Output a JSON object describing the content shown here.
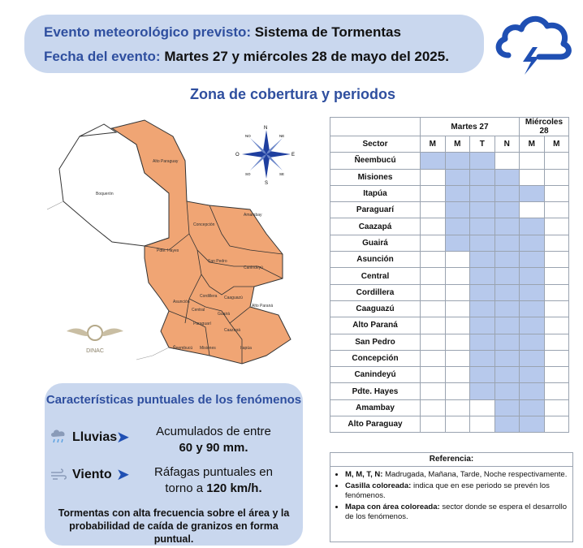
{
  "header": {
    "event_label": "Evento meteorológico previsto:",
    "event_value": "Sistema de Tormentas",
    "date_label": "Fecha del evento:",
    "date_value": "Martes 27 y miércoles 28 de mayo del 2025."
  },
  "icons": {
    "weather": "storm-cloud-icon",
    "rain": "rain-cloud-icon",
    "wind": "wind-icon"
  },
  "colors": {
    "accent": "#2f4f9f",
    "header_bg": "#c9d7ee",
    "cell_on": "#b7c9ec",
    "map_fill": "#f0a574",
    "icon_blue": "#1f4fb3"
  },
  "section_title": "Zona de cobertura y periodos",
  "map": {
    "labels": [
      "Alto Paraguay",
      "Boquerón",
      "Pdte. Hayes",
      "Concepción",
      "Amambay",
      "San Pedro",
      "Canindeyú",
      "Asunción",
      "Cordillera",
      "Caaguazú",
      "Alto Paraná",
      "Guairá",
      "Caazapá",
      "Paraguarí",
      "Ñeembucú",
      "Misiones",
      "Itapúa",
      "Central"
    ],
    "compass": {
      "n": "N",
      "ne": "NE",
      "e": "E",
      "se": "SE",
      "s": "S",
      "so": "SO",
      "o": "O",
      "no": "NO"
    },
    "logo_text": "DINAC"
  },
  "table": {
    "days": [
      "Martes 27",
      "Miércoles 28"
    ],
    "sector_header": "Sector",
    "periods": [
      "M",
      "M",
      "T",
      "N",
      "M",
      "M"
    ],
    "rows": [
      {
        "name": "Ñeembucú",
        "cells": [
          1,
          1,
          1,
          0,
          0,
          0
        ]
      },
      {
        "name": "Misiones",
        "cells": [
          0,
          1,
          1,
          1,
          0,
          0
        ]
      },
      {
        "name": "Itapúa",
        "cells": [
          0,
          1,
          1,
          1,
          1,
          0
        ]
      },
      {
        "name": "Paraguarí",
        "cells": [
          0,
          1,
          1,
          1,
          0,
          0
        ]
      },
      {
        "name": "Caazapá",
        "cells": [
          0,
          1,
          1,
          1,
          1,
          0
        ]
      },
      {
        "name": "Guairá",
        "cells": [
          0,
          1,
          1,
          1,
          1,
          0
        ]
      },
      {
        "name": "Asunción",
        "cells": [
          0,
          0,
          1,
          1,
          1,
          0
        ]
      },
      {
        "name": "Central",
        "cells": [
          0,
          0,
          1,
          1,
          1,
          0
        ]
      },
      {
        "name": "Cordillera",
        "cells": [
          0,
          0,
          1,
          1,
          1,
          0
        ]
      },
      {
        "name": "Caaguazú",
        "cells": [
          0,
          0,
          1,
          1,
          1,
          0
        ]
      },
      {
        "name": "Alto Paraná",
        "cells": [
          0,
          0,
          1,
          1,
          1,
          0
        ]
      },
      {
        "name": "San Pedro",
        "cells": [
          0,
          0,
          1,
          1,
          1,
          0
        ]
      },
      {
        "name": "Concepción",
        "cells": [
          0,
          0,
          1,
          1,
          1,
          0
        ]
      },
      {
        "name": "Canindeyú",
        "cells": [
          0,
          0,
          1,
          1,
          1,
          0
        ]
      },
      {
        "name": "Pdte. Hayes",
        "cells": [
          0,
          0,
          1,
          1,
          1,
          0
        ]
      },
      {
        "name": "Amambay",
        "cells": [
          0,
          0,
          0,
          1,
          1,
          0
        ]
      },
      {
        "name": "Alto Paraguay",
        "cells": [
          0,
          0,
          0,
          1,
          1,
          0
        ]
      }
    ]
  },
  "reference": {
    "title": "Referencia:",
    "items": [
      {
        "bold": "M, M, T, N:",
        "text": " Madrugada, Mañana, Tarde, Noche respectivamente."
      },
      {
        "bold": "Casilla coloreada:",
        "text": " indica que en ese periodo se prevén los fenómenos."
      },
      {
        "bold": "Mapa con área coloreada:",
        "text": " sector donde se espera el desarrollo de los fenómenos."
      }
    ]
  },
  "characteristics": {
    "title": "Características puntuales de los fenómenos",
    "rain_label": "Lluvias",
    "rain_text1": "Acumulados de entre",
    "rain_text2": "60 y 90 mm.",
    "wind_label": "Viento",
    "wind_text1": "Ráfagas puntuales en",
    "wind_text2_a": "torno a ",
    "wind_text2_b": "120 km/h.",
    "note": "Tormentas con alta frecuencia sobre el área y la probabilidad de caída de granizos en forma puntual."
  }
}
